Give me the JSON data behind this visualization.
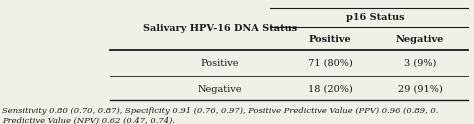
{
  "col_header_1": "Salivary HPV-16 DNA Status",
  "col_header_group": "p16 Status",
  "col_header_pos": "Positive",
  "col_header_neg": "Negative",
  "row1_label": "Positive",
  "row1_pos": "71 (80%)",
  "row1_neg": "3 (9%)",
  "row2_label": "Negative",
  "row2_pos": "18 (20%)",
  "row2_neg": "29 (91%)",
  "footnote1": "Sensitivity 0.80 (0.70, 0.87), Specificity 0.91 (0.76, 0.97), Positive Predictive Value (PPV) 0.96 (0.89, 0.",
  "footnote2": "Predictive Value (NPV) 0.62 (0.47, 0.74).",
  "bg_color": "#f0efe8",
  "text_color": "#1a1a1a",
  "font_size": 7.0,
  "footnote_font_size": 6.0
}
